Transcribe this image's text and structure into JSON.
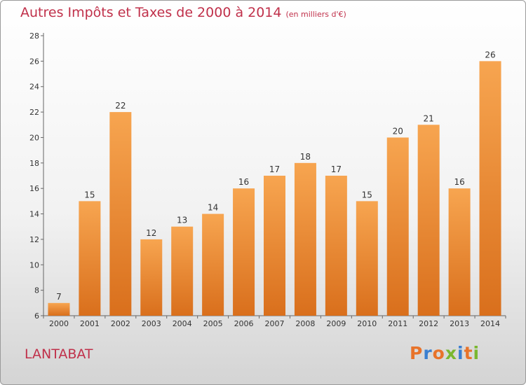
{
  "chart_data": {
    "type": "bar",
    "title": "Autres Impôts et Taxes de 2000 à 2014",
    "unit": "(en milliers d'€)",
    "categories": [
      "2000",
      "2001",
      "2002",
      "2003",
      "2004",
      "2005",
      "2006",
      "2007",
      "2008",
      "2009",
      "2010",
      "2011",
      "2012",
      "2013",
      "2014"
    ],
    "values": [
      7,
      15,
      22,
      12,
      13,
      14,
      16,
      17,
      18,
      17,
      15,
      20,
      21,
      16,
      26
    ],
    "ylim": [
      6,
      28
    ],
    "yticks": [
      6,
      8,
      10,
      12,
      14,
      16,
      18,
      20,
      22,
      24,
      26,
      28
    ],
    "grid": false,
    "bar_color": "#f0903a"
  },
  "footer": {
    "location": "LANTABAT",
    "brand": "Proxiti"
  },
  "colors": {
    "title": "#c0304a",
    "brand_letters": [
      "#e8732a",
      "#3a7fd0",
      "#e8732a",
      "#7ab72f",
      "#3a7fd0",
      "#e8732a",
      "#7ab72f"
    ]
  }
}
